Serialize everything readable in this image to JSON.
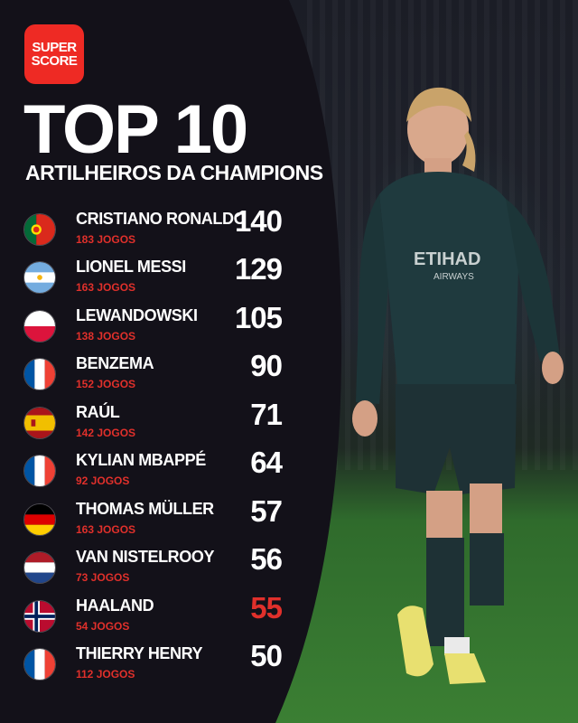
{
  "brand": {
    "line1": "SUPER",
    "line2": "SCORE"
  },
  "title": "TOP 10",
  "subtitle": "ARTILHEIROS DA CHAMPIONS",
  "player": {
    "shirt_sponsor": "ETIHAD",
    "shirt_sponsor2": "AIRWAYS"
  },
  "colors": {
    "panel": "#101014",
    "accent": "#e0302b",
    "brand": "#ee2a24"
  },
  "scorers": [
    {
      "flag": "portugal-flag-icon",
      "name": "CRISTIANO RONALDO",
      "games": "183 JOGOS",
      "goals": "140",
      "highlight": false
    },
    {
      "flag": "argentina-flag-icon",
      "name": "LIONEL MESSI",
      "games": "163 JOGOS",
      "goals": "129",
      "highlight": false
    },
    {
      "flag": "poland-flag-icon",
      "name": "LEWANDOWSKI",
      "games": "138 JOGOS",
      "goals": "105",
      "highlight": false
    },
    {
      "flag": "france-flag-icon",
      "name": "BENZEMA",
      "games": "152 JOGOS",
      "goals": "90",
      "highlight": false
    },
    {
      "flag": "spain-flag-icon",
      "name": "RAÚL",
      "games": "142 JOGOS",
      "goals": "71",
      "highlight": false
    },
    {
      "flag": "france-flag-icon",
      "name": "KYLIAN MBAPPÉ",
      "games": "92 JOGOS",
      "goals": "64",
      "highlight": false
    },
    {
      "flag": "germany-flag-icon",
      "name": "THOMAS MÜLLER",
      "games": "163 JOGOS",
      "goals": "57",
      "highlight": false
    },
    {
      "flag": "netherlands-flag-icon",
      "name": "VAN NISTELROOY",
      "games": "73 JOGOS",
      "goals": "56",
      "highlight": false
    },
    {
      "flag": "norway-flag-icon",
      "name": "HAALAND",
      "games": "54 JOGOS",
      "goals": "55",
      "highlight": true
    },
    {
      "flag": "france-flag-icon",
      "name": "THIERRY HENRY",
      "games": "112 JOGOS",
      "goals": "50",
      "highlight": false
    }
  ]
}
